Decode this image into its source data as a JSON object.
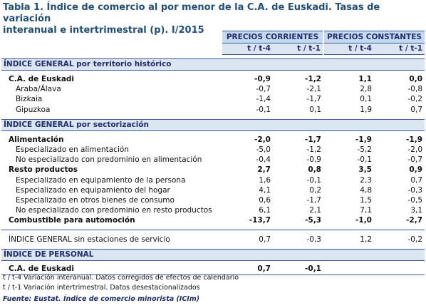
{
  "title_line1": "Tabla 1. Índice de comercio al por menor de la C.A. de Euskadi. Tasas de variación",
  "title_line2": "interanual e intertrimestral (p). I/2015",
  "header": {
    "group1": "PRECIOS CORRIENTES",
    "group2": "PRECIOS CONSTANTES",
    "sub": [
      "t / t-4",
      "t / t-1",
      "t / t-4",
      "t / t-1"
    ]
  },
  "sections": [
    {
      "label": "ÍNDICE GENERAL por territorio histórico",
      "rows": [
        {
          "label": "C.A. de Euskadi",
          "v": [
            "-0,9",
            "-1,2",
            "1,1",
            "0,0"
          ],
          "bold": true
        },
        {
          "label": "Araba/Álava",
          "v": [
            "-0,7",
            "-2,1",
            "2,8",
            "-0,8"
          ]
        },
        {
          "label": "Bizkaia",
          "v": [
            "-1,4",
            "-1,7",
            "0,1",
            "-0,2"
          ]
        },
        {
          "label": "Gipuzkoa",
          "v": [
            "-0,1",
            "0,1",
            "1,9",
            "0,7"
          ]
        }
      ]
    },
    {
      "label": "ÍNDICE GENERAL por sectorización",
      "rows": [
        {
          "label": "Alimentación",
          "v": [
            "-2,0",
            "-1,7",
            "-1,9",
            "-1,9"
          ],
          "bold": true
        },
        {
          "label": "Especializado en alimentación",
          "v": [
            "-5,0",
            "-1,2",
            "-5,2",
            "-2,0"
          ]
        },
        {
          "label": "No especializado con predominio en alimentación",
          "v": [
            "-0,4",
            "-0,9",
            "-0,1",
            "-0,7"
          ]
        },
        {
          "label": "Resto productos",
          "v": [
            "2,7",
            "0,8",
            "3,5",
            "0,9"
          ],
          "bold": true
        },
        {
          "label": "Especializado en equipamiento de la persona",
          "v": [
            "1,6",
            "-0,1",
            "2,3",
            "0,7"
          ]
        },
        {
          "label": "Especializado en equipamiento del hogar",
          "v": [
            "4,1",
            "0,2",
            "4,8",
            "-0,3"
          ]
        },
        {
          "label": "Especializado en otros bienes de consumo",
          "v": [
            "0,6",
            "-1,7",
            "1,5",
            "-0,5"
          ]
        },
        {
          "label": "No especializado con predominio en resto productos",
          "v": [
            "6,1",
            "2,1",
            "7,1",
            "3,1"
          ]
        },
        {
          "label": "Combustible para automoción",
          "v": [
            "-13,7",
            "-5,3",
            "-1,0",
            "-2,7"
          ],
          "bold": true
        }
      ]
    }
  ],
  "sin_estaciones": {
    "label": "ÍNDICE GENERAL sin estaciones de servicio",
    "v": [
      "0,7",
      "-0,3",
      "1,2",
      "-0,2"
    ]
  },
  "personal": {
    "label": "ÍNDICE DE PERSONAL",
    "row": {
      "label": "C.A. de Euskadi",
      "v": [
        "0,7",
        "-0,1",
        "",
        ""
      ]
    }
  },
  "notes": [
    "t / t-4 Variación interanual. Datos corregidos de efectos de calendario",
    "t / t-1 Variación intertrimestral. Datos desestacionalizados"
  ],
  "source": "Fuente: Eustat. Índice de comercio minorista (ICIm)"
}
